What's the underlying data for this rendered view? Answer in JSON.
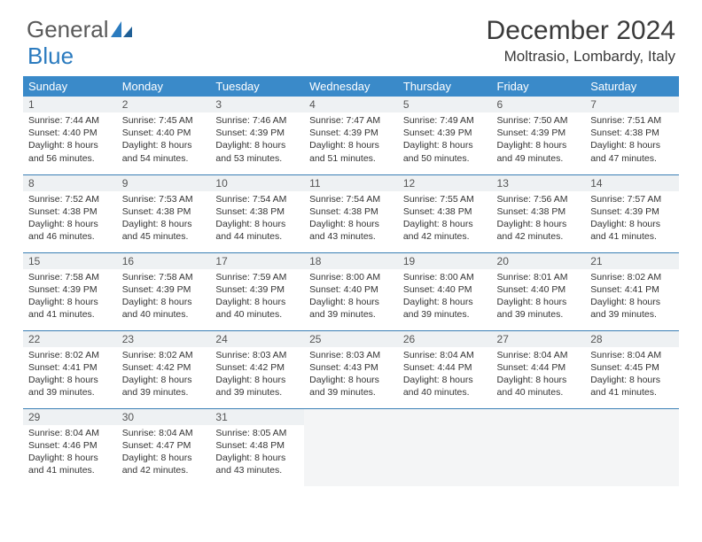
{
  "logo": {
    "word1": "General",
    "word2": "Blue"
  },
  "title": "December 2024",
  "location": "Moltrasio, Lombardy, Italy",
  "columns": [
    "Sunday",
    "Monday",
    "Tuesday",
    "Wednesday",
    "Thursday",
    "Friday",
    "Saturday"
  ],
  "colors": {
    "header_bg": "#3a8ac9",
    "header_text": "#ffffff",
    "daynum_bg": "#eef1f3",
    "row_border": "#3a7fb5",
    "logo_gray": "#5a5a5a",
    "logo_blue": "#2b7bbf"
  },
  "weeks": [
    [
      {
        "n": "1",
        "sr": "Sunrise: 7:44 AM",
        "ss": "Sunset: 4:40 PM",
        "d1": "Daylight: 8 hours",
        "d2": "and 56 minutes."
      },
      {
        "n": "2",
        "sr": "Sunrise: 7:45 AM",
        "ss": "Sunset: 4:40 PM",
        "d1": "Daylight: 8 hours",
        "d2": "and 54 minutes."
      },
      {
        "n": "3",
        "sr": "Sunrise: 7:46 AM",
        "ss": "Sunset: 4:39 PM",
        "d1": "Daylight: 8 hours",
        "d2": "and 53 minutes."
      },
      {
        "n": "4",
        "sr": "Sunrise: 7:47 AM",
        "ss": "Sunset: 4:39 PM",
        "d1": "Daylight: 8 hours",
        "d2": "and 51 minutes."
      },
      {
        "n": "5",
        "sr": "Sunrise: 7:49 AM",
        "ss": "Sunset: 4:39 PM",
        "d1": "Daylight: 8 hours",
        "d2": "and 50 minutes."
      },
      {
        "n": "6",
        "sr": "Sunrise: 7:50 AM",
        "ss": "Sunset: 4:39 PM",
        "d1": "Daylight: 8 hours",
        "d2": "and 49 minutes."
      },
      {
        "n": "7",
        "sr": "Sunrise: 7:51 AM",
        "ss": "Sunset: 4:38 PM",
        "d1": "Daylight: 8 hours",
        "d2": "and 47 minutes."
      }
    ],
    [
      {
        "n": "8",
        "sr": "Sunrise: 7:52 AM",
        "ss": "Sunset: 4:38 PM",
        "d1": "Daylight: 8 hours",
        "d2": "and 46 minutes."
      },
      {
        "n": "9",
        "sr": "Sunrise: 7:53 AM",
        "ss": "Sunset: 4:38 PM",
        "d1": "Daylight: 8 hours",
        "d2": "and 45 minutes."
      },
      {
        "n": "10",
        "sr": "Sunrise: 7:54 AM",
        "ss": "Sunset: 4:38 PM",
        "d1": "Daylight: 8 hours",
        "d2": "and 44 minutes."
      },
      {
        "n": "11",
        "sr": "Sunrise: 7:54 AM",
        "ss": "Sunset: 4:38 PM",
        "d1": "Daylight: 8 hours",
        "d2": "and 43 minutes."
      },
      {
        "n": "12",
        "sr": "Sunrise: 7:55 AM",
        "ss": "Sunset: 4:38 PM",
        "d1": "Daylight: 8 hours",
        "d2": "and 42 minutes."
      },
      {
        "n": "13",
        "sr": "Sunrise: 7:56 AM",
        "ss": "Sunset: 4:38 PM",
        "d1": "Daylight: 8 hours",
        "d2": "and 42 minutes."
      },
      {
        "n": "14",
        "sr": "Sunrise: 7:57 AM",
        "ss": "Sunset: 4:39 PM",
        "d1": "Daylight: 8 hours",
        "d2": "and 41 minutes."
      }
    ],
    [
      {
        "n": "15",
        "sr": "Sunrise: 7:58 AM",
        "ss": "Sunset: 4:39 PM",
        "d1": "Daylight: 8 hours",
        "d2": "and 41 minutes."
      },
      {
        "n": "16",
        "sr": "Sunrise: 7:58 AM",
        "ss": "Sunset: 4:39 PM",
        "d1": "Daylight: 8 hours",
        "d2": "and 40 minutes."
      },
      {
        "n": "17",
        "sr": "Sunrise: 7:59 AM",
        "ss": "Sunset: 4:39 PM",
        "d1": "Daylight: 8 hours",
        "d2": "and 40 minutes."
      },
      {
        "n": "18",
        "sr": "Sunrise: 8:00 AM",
        "ss": "Sunset: 4:40 PM",
        "d1": "Daylight: 8 hours",
        "d2": "and 39 minutes."
      },
      {
        "n": "19",
        "sr": "Sunrise: 8:00 AM",
        "ss": "Sunset: 4:40 PM",
        "d1": "Daylight: 8 hours",
        "d2": "and 39 minutes."
      },
      {
        "n": "20",
        "sr": "Sunrise: 8:01 AM",
        "ss": "Sunset: 4:40 PM",
        "d1": "Daylight: 8 hours",
        "d2": "and 39 minutes."
      },
      {
        "n": "21",
        "sr": "Sunrise: 8:02 AM",
        "ss": "Sunset: 4:41 PM",
        "d1": "Daylight: 8 hours",
        "d2": "and 39 minutes."
      }
    ],
    [
      {
        "n": "22",
        "sr": "Sunrise: 8:02 AM",
        "ss": "Sunset: 4:41 PM",
        "d1": "Daylight: 8 hours",
        "d2": "and 39 minutes."
      },
      {
        "n": "23",
        "sr": "Sunrise: 8:02 AM",
        "ss": "Sunset: 4:42 PM",
        "d1": "Daylight: 8 hours",
        "d2": "and 39 minutes."
      },
      {
        "n": "24",
        "sr": "Sunrise: 8:03 AM",
        "ss": "Sunset: 4:42 PM",
        "d1": "Daylight: 8 hours",
        "d2": "and 39 minutes."
      },
      {
        "n": "25",
        "sr": "Sunrise: 8:03 AM",
        "ss": "Sunset: 4:43 PM",
        "d1": "Daylight: 8 hours",
        "d2": "and 39 minutes."
      },
      {
        "n": "26",
        "sr": "Sunrise: 8:04 AM",
        "ss": "Sunset: 4:44 PM",
        "d1": "Daylight: 8 hours",
        "d2": "and 40 minutes."
      },
      {
        "n": "27",
        "sr": "Sunrise: 8:04 AM",
        "ss": "Sunset: 4:44 PM",
        "d1": "Daylight: 8 hours",
        "d2": "and 40 minutes."
      },
      {
        "n": "28",
        "sr": "Sunrise: 8:04 AM",
        "ss": "Sunset: 4:45 PM",
        "d1": "Daylight: 8 hours",
        "d2": "and 41 minutes."
      }
    ],
    [
      {
        "n": "29",
        "sr": "Sunrise: 8:04 AM",
        "ss": "Sunset: 4:46 PM",
        "d1": "Daylight: 8 hours",
        "d2": "and 41 minutes."
      },
      {
        "n": "30",
        "sr": "Sunrise: 8:04 AM",
        "ss": "Sunset: 4:47 PM",
        "d1": "Daylight: 8 hours",
        "d2": "and 42 minutes."
      },
      {
        "n": "31",
        "sr": "Sunrise: 8:05 AM",
        "ss": "Sunset: 4:48 PM",
        "d1": "Daylight: 8 hours",
        "d2": "and 43 minutes."
      },
      null,
      null,
      null,
      null
    ]
  ]
}
